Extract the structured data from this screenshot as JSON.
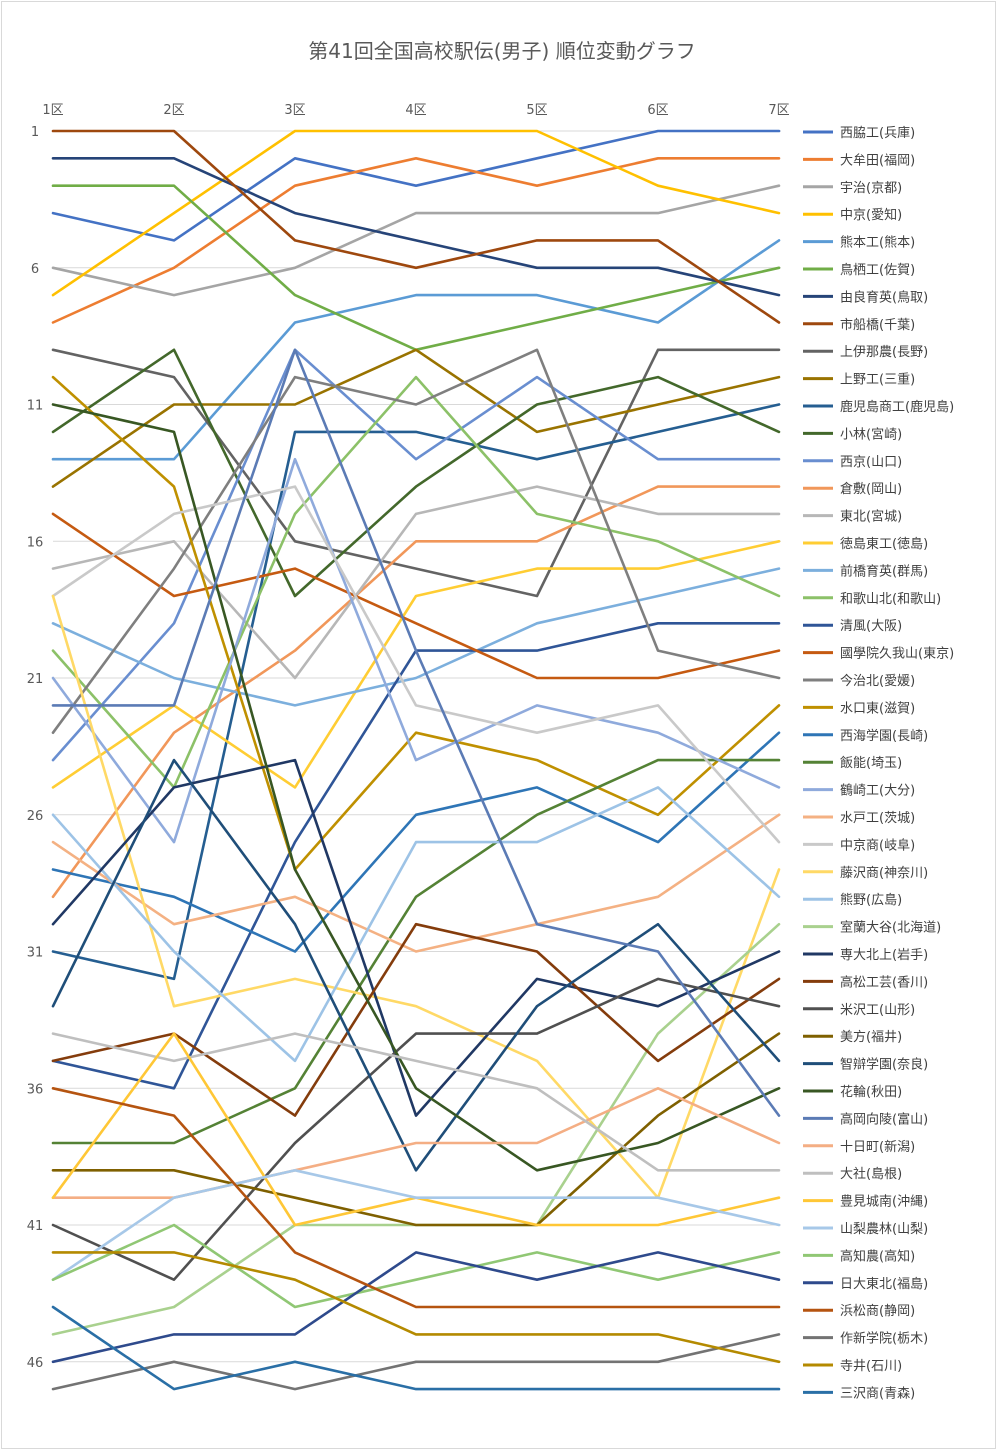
{
  "chart_data": {
    "type": "line",
    "title": "第41回全国高校駅伝(男子) 順位変動グラフ",
    "categories": [
      "1区",
      "2区",
      "3区",
      "4区",
      "5区",
      "6区",
      "7区"
    ],
    "y_ticks": [
      "1",
      "6",
      "11",
      "16",
      "21",
      "26",
      "31",
      "36",
      "41",
      "46"
    ],
    "ylim": [
      1,
      47
    ],
    "y_inverted": true,
    "grid": true,
    "legend_position": "right",
    "series": [
      {
        "name": "西脇工(兵庫)",
        "color": "#4472C4",
        "values": [
          4,
          5,
          2,
          3,
          2,
          1,
          1
        ]
      },
      {
        "name": "大牟田(福岡)",
        "color": "#ED7D31",
        "values": [
          8,
          6,
          3,
          2,
          3,
          2,
          2
        ]
      },
      {
        "name": "宇治(京都)",
        "color": "#A5A5A5",
        "values": [
          6,
          7,
          6,
          4,
          4,
          4,
          3
        ]
      },
      {
        "name": "中京(愛知)",
        "color": "#FFC000",
        "values": [
          7,
          4,
          1,
          1,
          1,
          3,
          4
        ]
      },
      {
        "name": "熊本工(熊本)",
        "color": "#5B9BD5",
        "values": [
          13,
          13,
          8,
          7,
          7,
          8,
          5
        ]
      },
      {
        "name": "鳥栖工(佐賀)",
        "color": "#70AD47",
        "values": [
          3,
          3,
          7,
          9,
          8,
          7,
          6
        ]
      },
      {
        "name": "由良育英(鳥取)",
        "color": "#264478",
        "values": [
          2,
          2,
          4,
          5,
          6,
          6,
          7
        ]
      },
      {
        "name": "市船橋(千葉)",
        "color": "#9E480E",
        "values": [
          1,
          1,
          5,
          6,
          5,
          5,
          8
        ]
      },
      {
        "name": "上伊那農(長野)",
        "color": "#636363",
        "values": [
          9,
          10,
          16,
          17,
          18,
          9,
          9
        ]
      },
      {
        "name": "上野工(三重)",
        "color": "#997300",
        "values": [
          14,
          11,
          11,
          9,
          12,
          11,
          10
        ]
      },
      {
        "name": "鹿児島商工(鹿児島)",
        "color": "#255E91",
        "values": [
          31,
          32,
          12,
          12,
          13,
          12,
          11
        ]
      },
      {
        "name": "小林(宮崎)",
        "color": "#43682B",
        "values": [
          12,
          9,
          18,
          14,
          11,
          10,
          12
        ]
      },
      {
        "name": "西京(山口)",
        "color": "#698ED0",
        "values": [
          24,
          19,
          9,
          13,
          10,
          13,
          13
        ]
      },
      {
        "name": "倉敷(岡山)",
        "color": "#F1975A",
        "values": [
          29,
          23,
          20,
          16,
          16,
          14,
          14
        ]
      },
      {
        "name": "東北(宮城)",
        "color": "#B7B7B7",
        "values": [
          17,
          16,
          21,
          15,
          14,
          15,
          15
        ]
      },
      {
        "name": "徳島東工(徳島)",
        "color": "#FFCD33",
        "values": [
          25,
          22,
          25,
          18,
          17,
          17,
          16
        ]
      },
      {
        "name": "前橋育英(群馬)",
        "color": "#7CAFDD",
        "values": [
          19,
          21,
          22,
          21,
          19,
          18,
          17
        ]
      },
      {
        "name": "和歌山北(和歌山)",
        "color": "#8CC168",
        "values": [
          20,
          25,
          15,
          10,
          15,
          16,
          18
        ]
      },
      {
        "name": "清風(大阪)",
        "color": "#2F5597",
        "values": [
          35,
          36,
          27,
          20,
          20,
          19,
          19
        ]
      },
      {
        "name": "國學院久我山(東京)",
        "color": "#C55A11",
        "values": [
          15,
          18,
          17,
          19,
          21,
          21,
          20
        ]
      },
      {
        "name": "今治北(愛媛)",
        "color": "#7F7F7F",
        "values": [
          23,
          17,
          10,
          11,
          9,
          20,
          21
        ]
      },
      {
        "name": "水口東(滋賀)",
        "color": "#BF9000",
        "values": [
          10,
          14,
          28,
          23,
          24,
          26,
          22
        ]
      },
      {
        "name": "西海学園(長崎)",
        "color": "#2E75B6",
        "values": [
          28,
          29,
          31,
          26,
          25,
          27,
          23
        ]
      },
      {
        "name": "飯能(埼玉)",
        "color": "#548235",
        "values": [
          38,
          38,
          36,
          29,
          26,
          24,
          24
        ]
      },
      {
        "name": "鶴崎工(大分)",
        "color": "#8FAADC",
        "values": [
          21,
          27,
          13,
          24,
          22,
          23,
          25
        ]
      },
      {
        "name": "水戸工(茨城)",
        "color": "#F4B183",
        "values": [
          27,
          30,
          29,
          31,
          30,
          29,
          26
        ]
      },
      {
        "name": "中京商(岐阜)",
        "color": "#C9C9C9",
        "values": [
          18,
          15,
          14,
          22,
          23,
          22,
          27
        ]
      },
      {
        "name": "藤沢商(神奈川)",
        "color": "#FFD966",
        "values": [
          18,
          33,
          32,
          33,
          35,
          40,
          28
        ]
      },
      {
        "name": "熊野(広島)",
        "color": "#9DC3E6",
        "values": [
          26,
          31,
          35,
          27,
          27,
          25,
          29
        ]
      },
      {
        "name": "室蘭大谷(北海道)",
        "color": "#A9D18E",
        "values": [
          45,
          44,
          41,
          41,
          41,
          34,
          30
        ]
      },
      {
        "name": "専大北上(岩手)",
        "color": "#203864",
        "values": [
          30,
          25,
          24,
          37,
          32,
          33,
          31
        ]
      },
      {
        "name": "高松工芸(香川)",
        "color": "#843C0C",
        "values": [
          35,
          34,
          37,
          30,
          31,
          35,
          32
        ]
      },
      {
        "name": "米沢工(山形)",
        "color": "#505050",
        "values": [
          41,
          43,
          38,
          34,
          34,
          32,
          33
        ]
      },
      {
        "name": "美方(福井)",
        "color": "#7F6000",
        "values": [
          39,
          39,
          40,
          41,
          41,
          37,
          34
        ]
      },
      {
        "name": "智辯学園(奈良)",
        "color": "#1F4E79",
        "values": [
          33,
          24,
          30,
          39,
          33,
          30,
          35
        ]
      },
      {
        "name": "花輪(秋田)",
        "color": "#385723",
        "values": [
          11,
          12,
          28,
          36,
          39,
          38,
          36
        ]
      },
      {
        "name": "高岡向陵(富山)",
        "color": "#5B7BB5",
        "values": [
          22,
          22,
          9,
          20,
          30,
          31,
          37
        ]
      },
      {
        "name": "十日町(新潟)",
        "color": "#F4AE84",
        "values": [
          40,
          40,
          39,
          38,
          38,
          36,
          38
        ]
      },
      {
        "name": "大社(島根)",
        "color": "#BFBFBF",
        "values": [
          34,
          35,
          34,
          35,
          36,
          39,
          39
        ]
      },
      {
        "name": "豊見城南(沖縄)",
        "color": "#FFC736",
        "values": [
          40,
          34,
          41,
          40,
          41,
          41,
          40
        ]
      },
      {
        "name": "山梨農林(山梨)",
        "color": "#A7C8E8",
        "values": [
          43,
          40,
          39,
          40,
          40,
          40,
          41
        ]
      },
      {
        "name": "高知農(高知)",
        "color": "#90C774",
        "values": [
          43,
          41,
          44,
          43,
          42,
          43,
          42
        ]
      },
      {
        "name": "日大東北(福島)",
        "color": "#2E4A8C",
        "values": [
          46,
          45,
          45,
          42,
          43,
          42,
          43
        ]
      },
      {
        "name": "浜松商(静岡)",
        "color": "#B55410",
        "values": [
          36,
          37,
          42,
          44,
          44,
          44,
          44
        ]
      },
      {
        "name": "作新学院(栃木)",
        "color": "#737373",
        "values": [
          47,
          46,
          47,
          46,
          46,
          46,
          45
        ]
      },
      {
        "name": "寺井(石川)",
        "color": "#B48A00",
        "values": [
          42,
          42,
          43,
          45,
          45,
          45,
          46
        ]
      },
      {
        "name": "三沢商(青森)",
        "color": "#2A6FA6",
        "values": [
          44,
          47,
          46,
          47,
          47,
          47,
          47
        ]
      }
    ]
  }
}
